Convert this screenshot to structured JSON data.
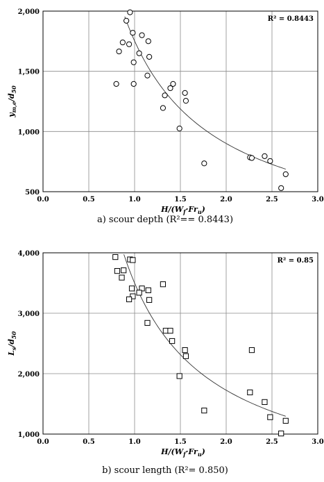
{
  "chart_data": [
    {
      "type": "scatter",
      "xlabel": "H/(W_f·Fr_u)",
      "ylabel": "y_m,e/d_50",
      "x_ticks": [
        "0.0",
        "0.5",
        "1.0",
        "1.5",
        "2.0",
        "2.5",
        "3.0"
      ],
      "y_ticks": [
        "500",
        "1,000",
        "1,500",
        "2,000"
      ],
      "xlim": [
        0,
        3
      ],
      "ylim": [
        500,
        2000
      ],
      "grid": true,
      "marker": "circle",
      "annotation": "R² = 0.8443",
      "caption": "a) scour depth (R²== 0.8443)",
      "trendline": {
        "type": "power",
        "a": 1752,
        "b": -0.96
      },
      "points": [
        {
          "x": 0.95,
          "y": 1990
        },
        {
          "x": 0.91,
          "y": 1920
        },
        {
          "x": 0.98,
          "y": 1820
        },
        {
          "x": 1.08,
          "y": 1800
        },
        {
          "x": 1.15,
          "y": 1750
        },
        {
          "x": 0.87,
          "y": 1740
        },
        {
          "x": 0.94,
          "y": 1725
        },
        {
          "x": 0.83,
          "y": 1665
        },
        {
          "x": 1.05,
          "y": 1650
        },
        {
          "x": 1.16,
          "y": 1620
        },
        {
          "x": 0.99,
          "y": 1575
        },
        {
          "x": 1.14,
          "y": 1465
        },
        {
          "x": 0.8,
          "y": 1395
        },
        {
          "x": 0.99,
          "y": 1395
        },
        {
          "x": 1.42,
          "y": 1395
        },
        {
          "x": 1.39,
          "y": 1360
        },
        {
          "x": 1.55,
          "y": 1320
        },
        {
          "x": 1.33,
          "y": 1300
        },
        {
          "x": 1.56,
          "y": 1255
        },
        {
          "x": 1.31,
          "y": 1195
        },
        {
          "x": 1.49,
          "y": 1025
        },
        {
          "x": 2.26,
          "y": 785
        },
        {
          "x": 2.28,
          "y": 780
        },
        {
          "x": 2.42,
          "y": 795
        },
        {
          "x": 2.48,
          "y": 755
        },
        {
          "x": 1.76,
          "y": 735
        },
        {
          "x": 2.65,
          "y": 645
        },
        {
          "x": 2.6,
          "y": 530
        }
      ]
    },
    {
      "type": "scatter",
      "xlabel": "H/(W_f·Fr_u)",
      "ylabel": "L_s/d_50",
      "x_ticks": [
        "0.0",
        "0.5",
        "1.0",
        "1.5",
        "2.0",
        "2.5",
        "3.0"
      ],
      "y_ticks": [
        "1,000",
        "2,000",
        "3,000",
        "4,000"
      ],
      "xlim": [
        0,
        3
      ],
      "ylim": [
        1000,
        4000
      ],
      "grid": true,
      "marker": "square",
      "annotation": "R² = 0.85",
      "caption": "b) scour length (R²= 0.850)",
      "trendline": {
        "type": "power",
        "a": 3500,
        "b": -1.02
      },
      "points": [
        {
          "x": 0.79,
          "y": 3930
        },
        {
          "x": 0.95,
          "y": 3890
        },
        {
          "x": 0.98,
          "y": 3880
        },
        {
          "x": 0.81,
          "y": 3700
        },
        {
          "x": 0.88,
          "y": 3710
        },
        {
          "x": 0.86,
          "y": 3590
        },
        {
          "x": 1.31,
          "y": 3480
        },
        {
          "x": 0.97,
          "y": 3410
        },
        {
          "x": 1.08,
          "y": 3410
        },
        {
          "x": 1.15,
          "y": 3380
        },
        {
          "x": 1.05,
          "y": 3340
        },
        {
          "x": 0.98,
          "y": 3280
        },
        {
          "x": 0.94,
          "y": 3230
        },
        {
          "x": 1.16,
          "y": 3220
        },
        {
          "x": 1.14,
          "y": 2840
        },
        {
          "x": 1.34,
          "y": 2710
        },
        {
          "x": 1.39,
          "y": 2710
        },
        {
          "x": 1.41,
          "y": 2540
        },
        {
          "x": 1.55,
          "y": 2390
        },
        {
          "x": 2.28,
          "y": 2390
        },
        {
          "x": 1.56,
          "y": 2290
        },
        {
          "x": 1.49,
          "y": 1960
        },
        {
          "x": 2.26,
          "y": 1690
        },
        {
          "x": 2.42,
          "y": 1530
        },
        {
          "x": 1.76,
          "y": 1390
        },
        {
          "x": 2.48,
          "y": 1280
        },
        {
          "x": 2.65,
          "y": 1220
        },
        {
          "x": 2.6,
          "y": 1010
        }
      ]
    }
  ]
}
